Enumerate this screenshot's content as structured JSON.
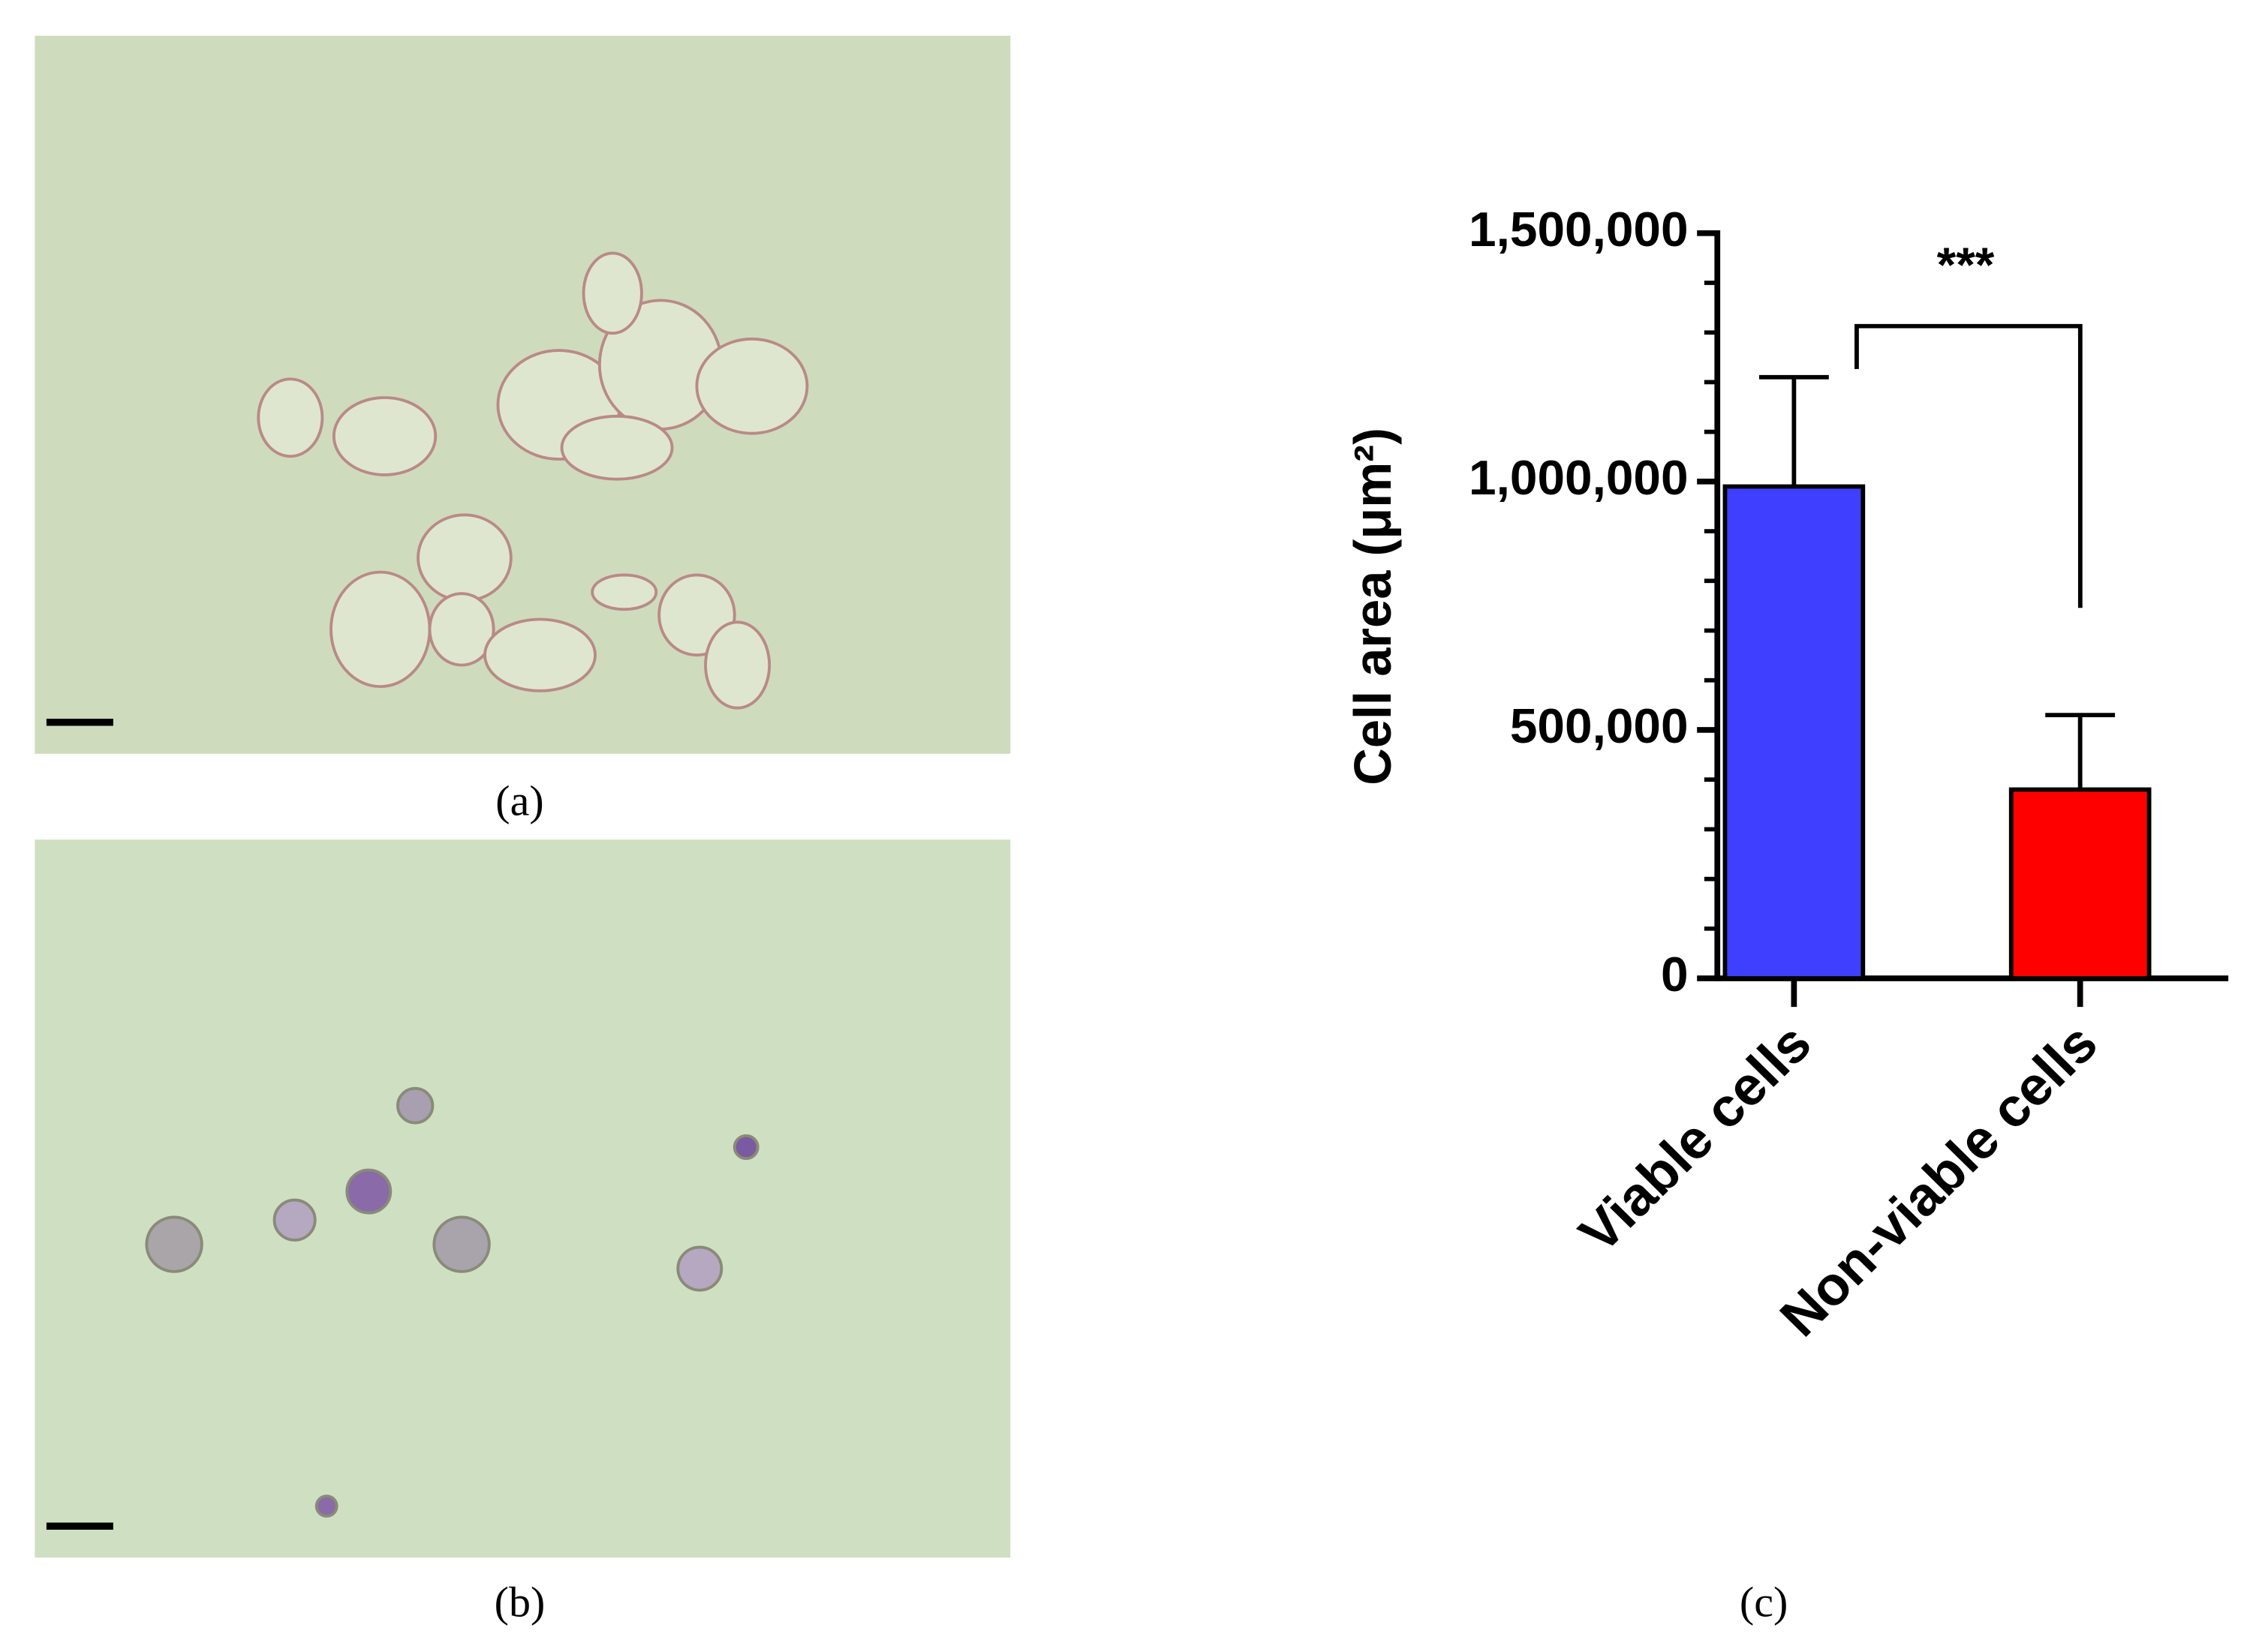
{
  "panel_labels": [
    "(a)",
    "(b)",
    "(c)"
  ],
  "chart_data": {
    "type": "bar",
    "y_label": "Cell area (μm²)",
    "categories": [
      "Viable cells",
      "Non-viable cells"
    ],
    "values": [
      990000,
      380000
    ],
    "errors": [
      220000,
      150000
    ],
    "colors": [
      "#3f3fff",
      "#ff0000"
    ],
    "annotation": "***",
    "ylim": [
      0,
      1500000
    ],
    "yticks": [
      0,
      {
        "value": 500000,
        "label": "500,000"
      },
      {
        "value": 1000000,
        "label": "1,000,000"
      },
      {
        "value": 1500000,
        "label": "1,500,000"
      }
    ],
    "minor_yticks": [
      100000,
      200000,
      300000,
      400000,
      600000,
      700000,
      800000,
      900000,
      1100000,
      1200000,
      1300000,
      1400000
    ]
  }
}
